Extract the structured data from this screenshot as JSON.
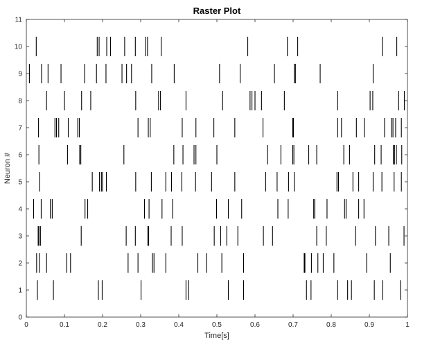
{
  "chart_data": {
    "type": "raster",
    "title": "Raster Plot",
    "xlabel": "Time[s]",
    "ylabel": "Neuron #",
    "xlim": [
      0,
      1
    ],
    "ylim": [
      0,
      11
    ],
    "xticks": [
      0,
      0.1,
      0.2,
      0.3,
      0.4,
      0.5,
      0.6,
      0.7,
      0.8,
      0.9,
      1
    ],
    "xtick_labels": [
      "0",
      "0.1",
      "0.2",
      "0.3",
      "0.4",
      "0.5",
      "0.6",
      "0.7",
      "0.8",
      "0.9",
      "1"
    ],
    "yticks": [
      0,
      1,
      2,
      3,
      4,
      5,
      6,
      7,
      8,
      9,
      10,
      11
    ],
    "ytick_labels": [
      "0",
      "1",
      "2",
      "3",
      "4",
      "5",
      "6",
      "7",
      "8",
      "9",
      "10",
      "11"
    ],
    "grid": false,
    "spike_color": "#000000",
    "series": [
      {
        "neuron": 1,
        "spikes": [
          0.029,
          0.071,
          0.189,
          0.199,
          0.301,
          0.419,
          0.426,
          0.53,
          0.57,
          0.735,
          0.747,
          0.817,
          0.843,
          0.853,
          0.913,
          0.935,
          0.982
        ]
      },
      {
        "neuron": 2,
        "spikes": [
          0.027,
          0.034,
          0.053,
          0.106,
          0.116,
          0.267,
          0.293,
          0.331,
          0.335,
          0.366,
          0.45,
          0.473,
          0.513,
          0.57,
          0.729,
          0.731,
          0.748,
          0.765,
          0.779,
          0.807,
          0.893,
          0.955
        ]
      },
      {
        "neuron": 3,
        "spikes": [
          0.031,
          0.033,
          0.037,
          0.144,
          0.262,
          0.286,
          0.319,
          0.321,
          0.38,
          0.409,
          0.493,
          0.51,
          0.526,
          0.555,
          0.622,
          0.646,
          0.762,
          0.787,
          0.864,
          0.916,
          0.951,
          0.991
        ]
      },
      {
        "neuron": 4,
        "spikes": [
          0.019,
          0.039,
          0.063,
          0.068,
          0.154,
          0.161,
          0.31,
          0.322,
          0.356,
          0.384,
          0.499,
          0.53,
          0.565,
          0.66,
          0.687,
          0.754,
          0.757,
          0.789,
          0.835,
          0.839,
          0.872,
          0.886
        ]
      },
      {
        "neuron": 5,
        "spikes": [
          0.035,
          0.173,
          0.192,
          0.197,
          0.2,
          0.21,
          0.287,
          0.328,
          0.366,
          0.381,
          0.408,
          0.444,
          0.486,
          0.547,
          0.628,
          0.658,
          0.688,
          0.703,
          0.815,
          0.819,
          0.857,
          0.872,
          0.91,
          0.933,
          0.965,
          0.984
        ]
      },
      {
        "neuron": 6,
        "spikes": [
          0.033,
          0.108,
          0.14,
          0.143,
          0.256,
          0.387,
          0.411,
          0.44,
          0.445,
          0.5,
          0.633,
          0.668,
          0.699,
          0.702,
          0.741,
          0.762,
          0.833,
          0.848,
          0.914,
          0.931,
          0.963,
          0.966,
          0.971,
          0.985
        ]
      },
      {
        "neuron": 7,
        "spikes": [
          0.032,
          0.075,
          0.079,
          0.085,
          0.11,
          0.135,
          0.139,
          0.293,
          0.32,
          0.325,
          0.409,
          0.445,
          0.492,
          0.547,
          0.621,
          0.699,
          0.701,
          0.817,
          0.827,
          0.866,
          0.887,
          0.94,
          0.958,
          0.962,
          0.969,
          0.984
        ]
      },
      {
        "neuron": 8,
        "spikes": [
          0.053,
          0.1,
          0.145,
          0.169,
          0.287,
          0.347,
          0.352,
          0.419,
          0.515,
          0.587,
          0.592,
          0.6,
          0.617,
          0.677,
          0.817,
          0.902,
          0.909,
          0.977,
          0.992
        ]
      },
      {
        "neuron": 9,
        "spikes": [
          0.008,
          0.04,
          0.057,
          0.091,
          0.153,
          0.184,
          0.209,
          0.251,
          0.263,
          0.276,
          0.329,
          0.388,
          0.507,
          0.561,
          0.651,
          0.703,
          0.706,
          0.771,
          0.91
        ]
      },
      {
        "neuron": 10,
        "spikes": [
          0.026,
          0.186,
          0.191,
          0.211,
          0.221,
          0.258,
          0.286,
          0.313,
          0.318,
          0.354,
          0.581,
          0.685,
          0.712,
          0.934,
          0.972
        ]
      }
    ]
  }
}
